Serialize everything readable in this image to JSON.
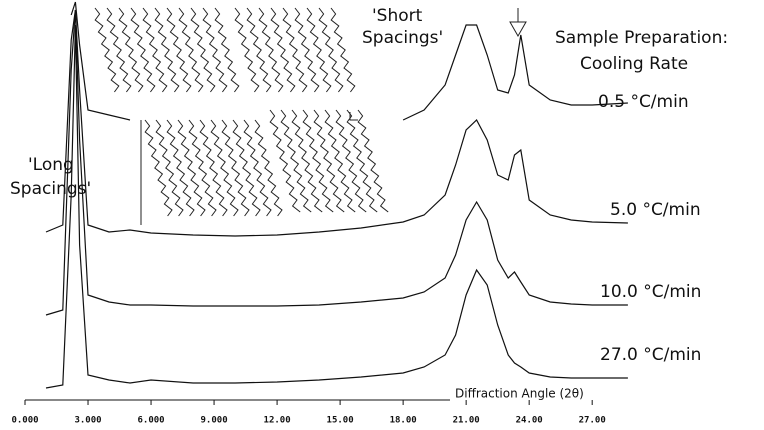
{
  "chart_data": {
    "type": "line",
    "title_lines": [
      "Sample Preparation:",
      "Cooling Rate"
    ],
    "long_spacings_label": [
      "'Long",
      "Spacings'"
    ],
    "short_spacings_label": [
      "'Short",
      "Spacings'"
    ],
    "x_label": "Diffraction Angle (2θ)",
    "xlim": [
      0,
      28.8
    ],
    "xticks": [
      {
        "value": 0,
        "label": "0.000"
      },
      {
        "value": 3,
        "label": "3.000"
      },
      {
        "value": 6,
        "label": "6.000"
      },
      {
        "value": 9,
        "label": "9.000"
      },
      {
        "value": 12,
        "label": "12.00"
      },
      {
        "value": 15,
        "label": "15.00"
      },
      {
        "value": 18,
        "label": "18.00"
      },
      {
        "value": 21,
        "label": "21.00"
      },
      {
        "value": 24,
        "label": "24.00"
      },
      {
        "value": 27,
        "label": "27.00"
      }
    ],
    "x": [
      1.0,
      1.8,
      2.2,
      2.4,
      2.6,
      3.0,
      4.0,
      5.0,
      6.0,
      8.0,
      10,
      12,
      14,
      16,
      18,
      19,
      20,
      20.5,
      21,
      21.5,
      22,
      22.5,
      23,
      23.3,
      23.6,
      24,
      25,
      26,
      27,
      28.7
    ],
    "series": [
      {
        "name": "0.5 °C/min",
        "color": "#111111",
        "values": [
          null,
          null,
          150,
          165,
          120,
          55,
          50,
          45,
          null,
          null,
          null,
          null,
          null,
          null,
          45,
          55,
          80,
          110,
          140,
          140,
          110,
          75,
          72,
          90,
          130,
          80,
          65,
          60,
          60,
          62
        ]
      },
      {
        "name": "5.0 °C/min",
        "color": "#111111",
        "values": [
          8,
          15,
          200,
          230,
          150,
          15,
          8,
          10,
          7,
          5,
          4,
          5,
          8,
          12,
          18,
          25,
          45,
          75,
          110,
          120,
          100,
          65,
          60,
          85,
          90,
          40,
          25,
          20,
          18,
          17
        ]
      },
      {
        "name": "10.0 °C/min",
        "color": "#111111",
        "values": [
          5,
          10,
          250,
          310,
          180,
          25,
          18,
          15,
          15,
          14,
          14,
          14,
          15,
          18,
          22,
          28,
          42,
          65,
          100,
          118,
          100,
          60,
          42,
          48,
          38,
          25,
          18,
          16,
          15,
          15
        ]
      },
      {
        "name": "27.0 °C/min",
        "color": "#111111",
        "values": [
          7,
          10,
          200,
          370,
          150,
          20,
          15,
          12,
          15,
          12,
          12,
          13,
          15,
          18,
          22,
          28,
          40,
          60,
          100,
          125,
          110,
          70,
          40,
          32,
          28,
          22,
          18,
          17,
          17,
          17
        ]
      }
    ]
  }
}
